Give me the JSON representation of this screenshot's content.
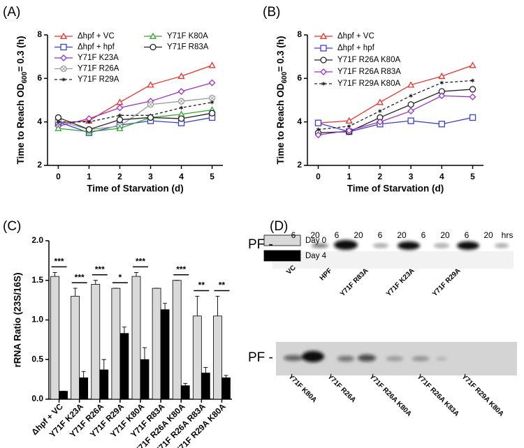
{
  "chart_data": [
    {
      "type": "line",
      "panel_label": "(A)",
      "x_label": "Time of Starvation (d)",
      "y_label": [
        "Time to Reach OD",
        "600",
        "= 0.3 (h)"
      ],
      "x": [
        0,
        1,
        2,
        3,
        4,
        5
      ],
      "xlim": [
        -0.35,
        5.35
      ],
      "xticks": [
        0,
        1,
        2,
        3,
        4,
        5
      ],
      "ylim": [
        2,
        8
      ],
      "yticks": [
        2,
        4,
        6,
        8
      ],
      "series": [
        {
          "name": "Δhpf + VC",
          "color": "#e8332a",
          "marker": "triangle",
          "values": [
            3.95,
            4.05,
            4.9,
            5.7,
            6.1,
            6.6
          ]
        },
        {
          "name": "Δhpf + hpf",
          "color": "#3a3fd0",
          "marker": "square",
          "values": [
            4.0,
            3.5,
            3.85,
            4.05,
            3.95,
            4.2
          ]
        },
        {
          "name": "Y71F K23A",
          "color": "#9b30c8",
          "marker": "diamond",
          "values": [
            3.8,
            4.15,
            4.65,
            4.95,
            5.4,
            5.8
          ]
        },
        {
          "name": "Y71F R26A",
          "color": "#999999",
          "marker": "circle-x",
          "values": [
            4.05,
            3.65,
            3.8,
            4.8,
            4.95,
            5.1
          ]
        },
        {
          "name": "Y71F R29A",
          "color": "#222222",
          "marker": "star",
          "dashed": true,
          "values": [
            4.0,
            4.0,
            4.3,
            4.3,
            4.65,
            4.9
          ]
        },
        {
          "name": "Y71F K80A",
          "color": "#2fa832",
          "marker": "triangle",
          "values": [
            3.7,
            3.55,
            3.7,
            4.2,
            4.35,
            4.55
          ]
        },
        {
          "name": "Y71F R83A",
          "color": "#222222",
          "marker": "circle",
          "values": [
            4.2,
            3.65,
            4.1,
            4.2,
            4.15,
            4.4
          ]
        }
      ]
    },
    {
      "type": "line",
      "panel_label": "(B)",
      "x_label": "Time of Starvation (d)",
      "y_label": [
        "Time to Reach OD",
        "600",
        "= 0.3 (h)"
      ],
      "x": [
        0,
        1,
        2,
        3,
        4,
        5
      ],
      "xlim": [
        -0.35,
        5.35
      ],
      "xticks": [
        0,
        1,
        2,
        3,
        4,
        5
      ],
      "ylim": [
        2,
        8
      ],
      "yticks": [
        2,
        4,
        6,
        8
      ],
      "series": [
        {
          "name": "Δhpf + VC",
          "color": "#e8332a",
          "marker": "triangle",
          "values": [
            3.95,
            4.05,
            4.9,
            5.7,
            6.1,
            6.6
          ]
        },
        {
          "name": "Δhpf + hpf",
          "color": "#3a3fd0",
          "marker": "square",
          "values": [
            3.95,
            3.55,
            3.9,
            4.05,
            3.9,
            4.2
          ]
        },
        {
          "name": "Y71F R26A K80A",
          "color": "#222222",
          "marker": "circle",
          "values": [
            3.5,
            3.55,
            4.2,
            4.8,
            5.4,
            5.5
          ]
        },
        {
          "name": "Y71F R26A R83A",
          "color": "#9b30c8",
          "marker": "diamond",
          "values": [
            3.4,
            3.6,
            4.0,
            4.5,
            5.2,
            5.15
          ]
        },
        {
          "name": "Y71F R29A K80A",
          "color": "#222222",
          "marker": "star",
          "dashed": true,
          "values": [
            3.65,
            3.8,
            4.5,
            5.2,
            5.8,
            5.9
          ]
        }
      ]
    },
    {
      "type": "bar",
      "panel_label": "(C)",
      "y_label": "rRNA Ratio (23S/16S)",
      "categories": [
        "Δhpf + VC",
        "Y71F K23A",
        "Y71F R26A",
        "Y71F R29A",
        "Y71F K80A",
        "Y71F R83A",
        "Y71F R26A K80A",
        "Y71F R26A R83A",
        "Y71F R29A K80A"
      ],
      "ylim": [
        0,
        2
      ],
      "yticks": [
        {
          "value": 0,
          "label": "0.0"
        },
        {
          "value": 0.5,
          "label": "0.5"
        },
        {
          "value": 1,
          "label": "1.0"
        },
        {
          "value": 1.5,
          "label": "1.5"
        },
        {
          "value": 2,
          "label": "2.0"
        }
      ],
      "series": [
        {
          "name": "Day 0",
          "color": "#d9d9d9",
          "values": [
            1.55,
            1.3,
            1.45,
            1.4,
            1.55,
            1.4,
            1.5,
            1.05,
            1.05
          ],
          "errors": [
            0.05,
            0.1,
            0.05,
            0,
            0.05,
            0,
            0,
            0.25,
            0.25
          ]
        },
        {
          "name": "Day 4",
          "color": "#000000",
          "values": [
            0.1,
            0.27,
            0.37,
            0.83,
            0.5,
            1.13,
            0.17,
            0.33,
            0.27
          ],
          "errors": [
            0,
            0.08,
            0.13,
            0.08,
            0.15,
            0.08,
            0.03,
            0.07,
            0.03
          ]
        }
      ],
      "significance": [
        "***",
        "***",
        "***",
        "*",
        "***",
        null,
        "***",
        "**",
        "**"
      ]
    }
  ],
  "blot": {
    "panel_label": "(D)",
    "times": [
      "6",
      "20",
      "6",
      "20",
      "6",
      "20",
      "6",
      "20",
      "6",
      "20"
    ],
    "unit": "hrs",
    "upper": {
      "marker": "PF -",
      "labels": [
        "VC",
        "HPF",
        "Y71F R83A",
        "Y71F K23A",
        "Y71F R29A"
      ]
    },
    "lower": {
      "marker": "PF -",
      "labels": [
        "Y71F K80A",
        "Y71F R26A",
        "Y71F R26A K80A",
        "Y71F R26A K83A",
        "Y71F R29A K80A"
      ]
    }
  }
}
